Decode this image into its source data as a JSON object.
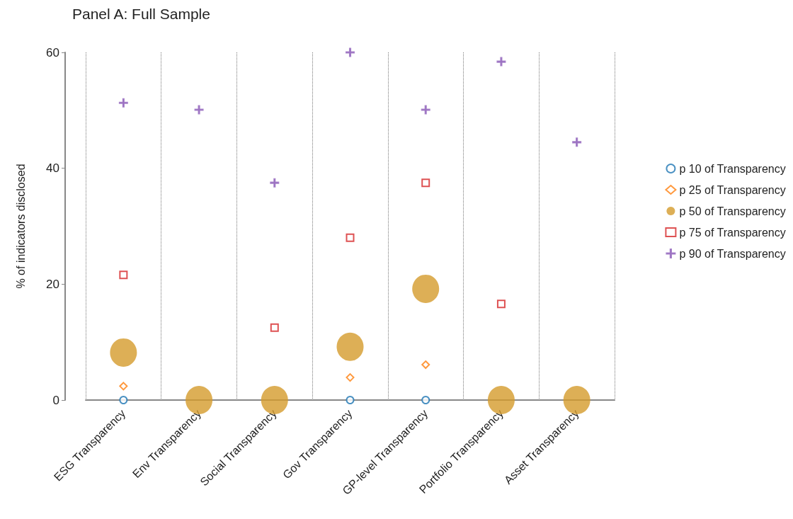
{
  "chart_data": {
    "type": "scatter",
    "title": "Panel A: Full Sample",
    "ylabel": "% of indicators disclosed",
    "categories": [
      "ESG Transparency",
      "Env Transparency",
      "Social Transparency",
      "Gov Transparency",
      "GP-level Transparency",
      "Portfolio Transparency",
      "Asset Transparency"
    ],
    "series": [
      {
        "name": "p 10 of Transparency",
        "color": "#1f77b4",
        "marker": "circle",
        "values": [
          0,
          null,
          null,
          0,
          0,
          null,
          null
        ]
      },
      {
        "name": "p 25 of Transparency",
        "color": "#ff7f0e",
        "marker": "diamond",
        "values": [
          2.4,
          null,
          null,
          3.9,
          6.1,
          null,
          null
        ]
      },
      {
        "name": "p 50 of Transparency",
        "color": "#d49b2c",
        "marker": "circle",
        "values": [
          8.2,
          0,
          0,
          9.2,
          19.2,
          0,
          0
        ]
      },
      {
        "name": "p 75 of Transparency",
        "color": "#d62728",
        "marker": "square",
        "values": [
          21.6,
          null,
          12.5,
          28,
          37.5,
          16.6,
          null
        ]
      },
      {
        "name": "p 90 of Transparency",
        "color": "#9467bd",
        "marker": "cross",
        "values": [
          51.3,
          50.1,
          37.5,
          60,
          50.1,
          58.4,
          44.5
        ]
      }
    ],
    "ylim": [
      0,
      60
    ],
    "yticks": [
      0,
      20,
      40,
      60
    ],
    "grid": "x",
    "legend": "right"
  }
}
